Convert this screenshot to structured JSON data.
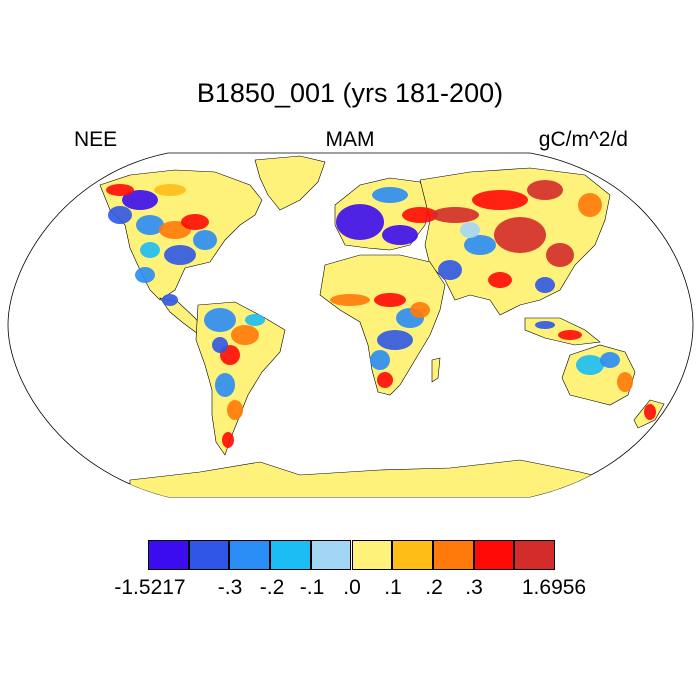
{
  "title": "B1850_001 (yrs 181-200)",
  "left_label": "NEE",
  "center_label": "MAM",
  "units_label": "gC/m^2/d",
  "legend": {
    "colors": [
      "#3b0cf0",
      "#2f56e6",
      "#2a8cf5",
      "#1cbcf5",
      "#a3d6f5",
      "#fff27a",
      "#ffbd16",
      "#ff7a0a",
      "#ff0a06",
      "#d42b2b"
    ],
    "labels": [
      "-1.5217",
      "-.3",
      "-.2",
      "-.1",
      ".0",
      ".1",
      ".2",
      ".3",
      "1.6956"
    ]
  },
  "map_colors": {
    "ocean": "#ffffff",
    "land_base": "#fff27a",
    "antarctica": "#fff27a"
  }
}
